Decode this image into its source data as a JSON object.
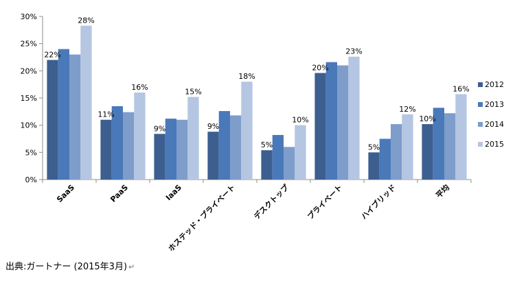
{
  "chart_data": {
    "type": "bar",
    "categories": [
      "SaaS",
      "PaaS",
      "IaaS",
      "ホステッド・プライベート",
      "デスクトップ",
      "プライベート",
      "ハイブリッド",
      "平均"
    ],
    "series": [
      {
        "name": "2012",
        "values": [
          22,
          11,
          8.4,
          8.8,
          5.4,
          19.6,
          5,
          10.2
        ]
      },
      {
        "name": "2013",
        "values": [
          24,
          13.5,
          11.2,
          12.6,
          8.2,
          21.6,
          7.5,
          13.2
        ]
      },
      {
        "name": "2014",
        "values": [
          23,
          12.4,
          11,
          11.8,
          6,
          21,
          10.2,
          12.2
        ]
      },
      {
        "name": "2015",
        "values": [
          28.3,
          16,
          15.2,
          18,
          10,
          22.6,
          12,
          15.7
        ]
      }
    ],
    "data_labels": [
      {
        "category": "SaaS",
        "series": "2012",
        "text": "22%"
      },
      {
        "category": "SaaS",
        "series": "2015",
        "text": "28%"
      },
      {
        "category": "PaaS",
        "series": "2012",
        "text": "11%"
      },
      {
        "category": "PaaS",
        "series": "2015",
        "text": "16%"
      },
      {
        "category": "IaaS",
        "series": "2012",
        "text": "9%"
      },
      {
        "category": "IaaS",
        "series": "2015",
        "text": "15%"
      },
      {
        "category": "ホステッド・プライベート",
        "series": "2012",
        "text": "9%"
      },
      {
        "category": "ホステッド・プライベート",
        "series": "2015",
        "text": "18%"
      },
      {
        "category": "デスクトップ",
        "series": "2012",
        "text": "5%"
      },
      {
        "category": "デスクトップ",
        "series": "2015",
        "text": "10%"
      },
      {
        "category": "プライベート",
        "series": "2012",
        "text": "20%"
      },
      {
        "category": "プライベート",
        "series": "2015",
        "text": "23%"
      },
      {
        "category": "ハイブリッド",
        "series": "2012",
        "text": "5%"
      },
      {
        "category": "ハイブリッド",
        "series": "2015",
        "text": "12%"
      },
      {
        "category": "平均",
        "series": "2012",
        "text": "10%"
      },
      {
        "category": "平均",
        "series": "2015",
        "text": "16%"
      }
    ],
    "y_ticks": [
      "0%",
      "5%",
      "10%",
      "15%",
      "20%",
      "25%",
      "30%"
    ],
    "ylim": [
      0,
      30
    ],
    "y_unit": "%",
    "grid": false,
    "legend_position": "right",
    "title": "",
    "xlabel": "",
    "ylabel": "",
    "colors": [
      "#3D5F8F",
      "#4A79BA",
      "#7E9DCB",
      "#B5C6E2"
    ]
  },
  "source_note": "出典:ガートナー (2015年3月)",
  "return_mark": "↵"
}
